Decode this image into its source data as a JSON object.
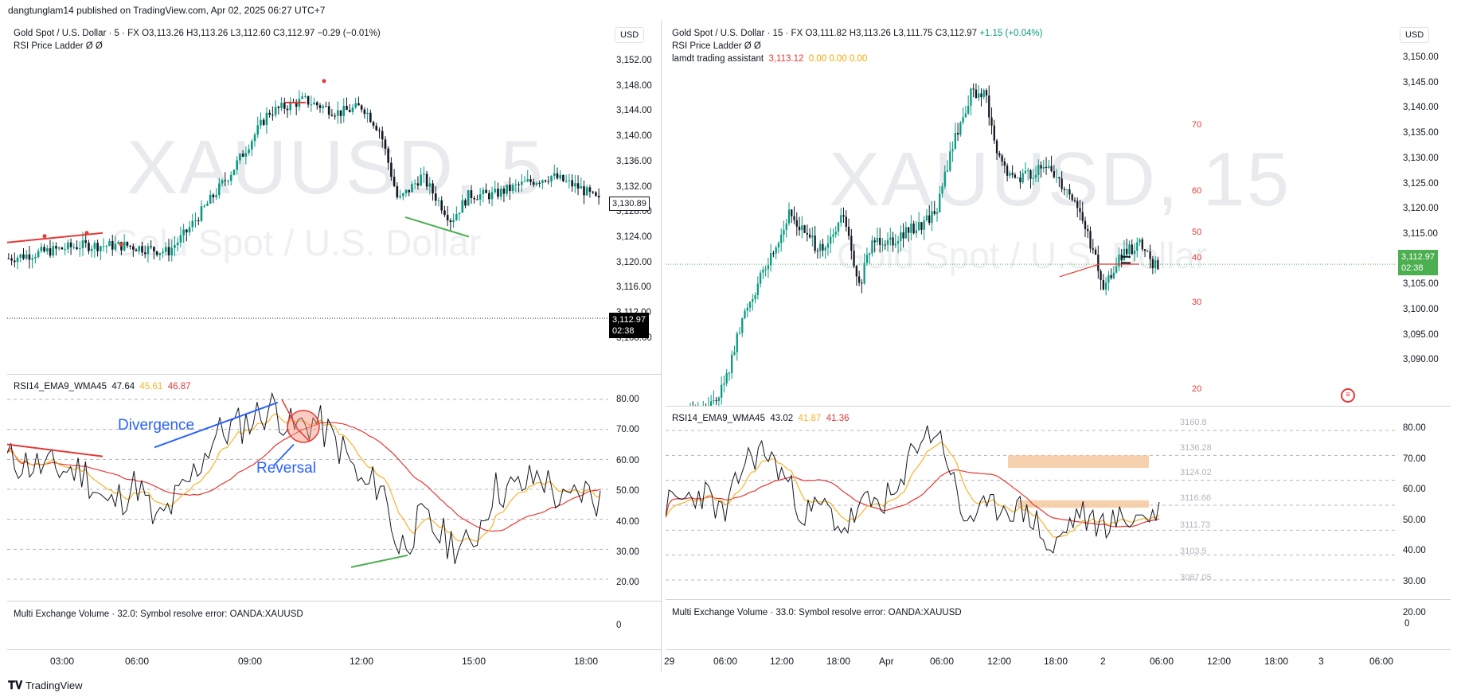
{
  "header": {
    "published": "dangtunglam14 published on TradingView.com, Apr 02, 2025 06:27 UTC+7"
  },
  "footer": {
    "brand": "TradingView"
  },
  "left": {
    "currency": "USD",
    "legend_title": "Gold Spot / U.S. Dollar · 5 · FX",
    "ohlc": "O3,113.26  H3,113.26  L3,112.60  C3,112.97  −0.29 (−0.01%)",
    "indicator1": "RSI Price Ladder  Ø  Ø",
    "watermark_symbol": "XAUUSD, 5",
    "watermark_name": "Gold Spot / U.S. Dollar",
    "price_axis": [
      "3,152.00",
      "3,148.00",
      "3,144.00",
      "3,140.00",
      "3,136.00",
      "3,132.00",
      "3,128.00",
      "3,124.00",
      "3,120.00",
      "3,116.00",
      "3,112.00",
      "3,108.00"
    ],
    "crosshair_price": "3,130.89",
    "last_price": "3,112.97",
    "countdown": "02:38",
    "rsi_legend": "RSI14_EMA9_WMA45",
    "rsi_val": "47.64",
    "ema_val": "45.61",
    "wma_val": "46.87",
    "rsi_axis": [
      "80.00",
      "70.00",
      "60.00",
      "50.00",
      "40.00",
      "30.00",
      "20.00"
    ],
    "annotation_divergence": "Divergence",
    "annotation_reversal": "Reversal",
    "volume_legend": "Multi Exchange Volume · 32.0: Symbol resolve error: OANDA:XAUUSD",
    "volume_axis": "0",
    "time_axis": [
      "03:00",
      "06:00",
      "09:00",
      "12:00",
      "15:00",
      "18:00"
    ]
  },
  "right": {
    "currency": "USD",
    "legend_title": "Gold Spot / U.S. Dollar · 15 · FX",
    "ohlc_o": "O3,111.82",
    "ohlc_h": "H3,113.26",
    "ohlc_l": "L3,111.75",
    "ohlc_c": "C3,112.97",
    "ohlc_chg": "+1.15 (+0.04%)",
    "indicator1": "RSI Price Ladder  Ø  Ø",
    "indicator2_name": "lamdt trading assistant",
    "indicator2_val": "3,113.12",
    "indicator2_rest": "0.00  0.00  0.00",
    "watermark_symbol": "XAUUSD, 15",
    "watermark_name": "Gold Spot / U.S. Dollar",
    "price_axis": [
      "3,150.00",
      "3,145.00",
      "3,140.00",
      "3,135.00",
      "3,130.00",
      "3,125.00",
      "3,120.00",
      "3,115.00",
      "3,110.00",
      "3,105.00",
      "3,100.00",
      "3,095.00",
      "3,090.00"
    ],
    "last_price": "3,112.97",
    "countdown": "02:38",
    "ladder": [
      "70",
      "60",
      "50",
      "40",
      "30",
      "20"
    ],
    "rsi_legend": "RSI14_EMA9_WMA45",
    "rsi_val": "43.02",
    "ema_val": "41.87",
    "wma_val": "41.36",
    "rsi_axis": [
      "80.00",
      "70.00",
      "60.00",
      "50.00",
      "40.00",
      "30.00",
      "20.00"
    ],
    "rsi_price_levels": [
      "3160.8",
      "3136.28",
      "3124.02",
      "3116.66",
      "3111.73",
      "3103.5",
      "3087.05"
    ],
    "volume_legend": "Multi Exchange Volume · 33.0: Symbol resolve error: OANDA:XAUUSD",
    "volume_axis": "0",
    "time_axis": [
      "29",
      "06:00",
      "12:00",
      "18:00",
      "Apr",
      "06:00",
      "12:00",
      "18:00",
      "2",
      "06:00",
      "12:00",
      "18:00",
      "3",
      "06:00"
    ]
  },
  "colors": {
    "up": "#089981",
    "down": "#131722",
    "ema": "#f7b32b",
    "wma": "#e53935",
    "annot": "#2962ff",
    "green_line": "#4caf50",
    "zone": "#f6c9a0"
  }
}
